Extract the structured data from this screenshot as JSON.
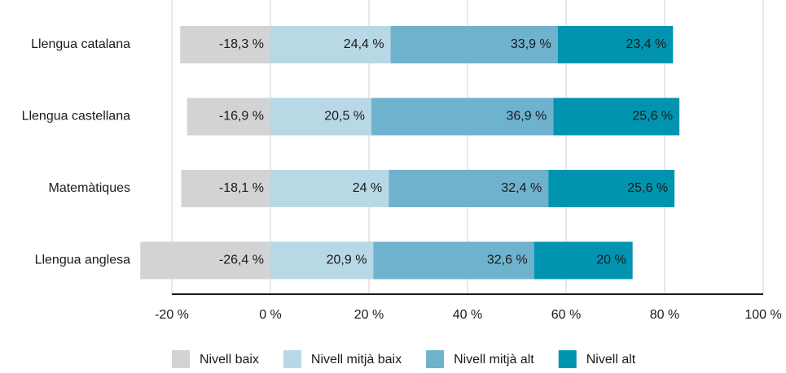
{
  "chart_data": {
    "type": "stacked-bar-horizontal",
    "categories": [
      "Llengua catalana",
      "Llengua castellana",
      "Matemàtiques",
      "Llengua anglesa"
    ],
    "series": [
      {
        "name": "Nivell baix",
        "color": "#d3d3d5",
        "values": [
          -18.3,
          -16.9,
          -18.1,
          -26.4
        ],
        "value_labels": [
          "-18,3 %",
          "-16,9 %",
          "-18,1 %",
          "-26,4 %"
        ]
      },
      {
        "name": "Nivell mitjà baix",
        "color": "#b8d8e6",
        "values": [
          24.4,
          20.5,
          24,
          20.9
        ],
        "value_labels": [
          "24,4 %",
          "20,5 %",
          "24 %",
          "20,9 %"
        ]
      },
      {
        "name": "Nivell mitjà alt",
        "color": "#6fb2ce",
        "values": [
          33.9,
          36.9,
          32.4,
          32.6
        ],
        "value_labels": [
          "33,9 %",
          "36,9 %",
          "32,4 %",
          "32,6 %"
        ]
      },
      {
        "name": "Nivell alt",
        "color": "#0094b0",
        "values": [
          23.4,
          25.6,
          25.6,
          20
        ],
        "value_labels": [
          "23,4 %",
          "25,6 %",
          "25,6 %",
          "20 %"
        ]
      }
    ],
    "xlim": [
      -20,
      100
    ],
    "xticks": [
      {
        "value": -20,
        "label": "-20 %"
      },
      {
        "value": 0,
        "label": "0 %"
      },
      {
        "value": 20,
        "label": "20 %"
      },
      {
        "value": 40,
        "label": "40 %"
      },
      {
        "value": 60,
        "label": "60 %"
      },
      {
        "value": 80,
        "label": "80 %"
      },
      {
        "value": 100,
        "label": "100 %"
      }
    ],
    "grid": true,
    "legend": "bottom"
  }
}
